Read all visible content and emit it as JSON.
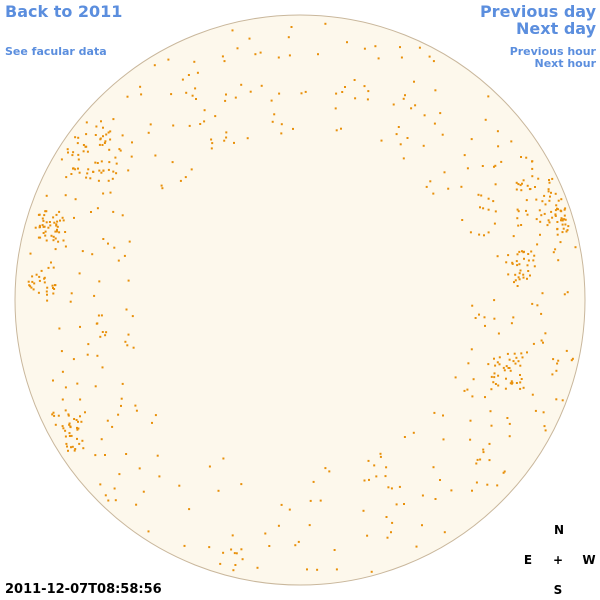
{
  "nav": {
    "back": "Back to 2011",
    "facular": "See facular data",
    "previous_day": "Previous day",
    "next_day": "Next day",
    "previous_hour": "Previous hour",
    "next_hour": "Next hour"
  },
  "timestamp": "2011-12-07T08:58:56",
  "compass": {
    "north": "N",
    "east": "E",
    "center": "+",
    "west": "W",
    "south": "S"
  }
}
